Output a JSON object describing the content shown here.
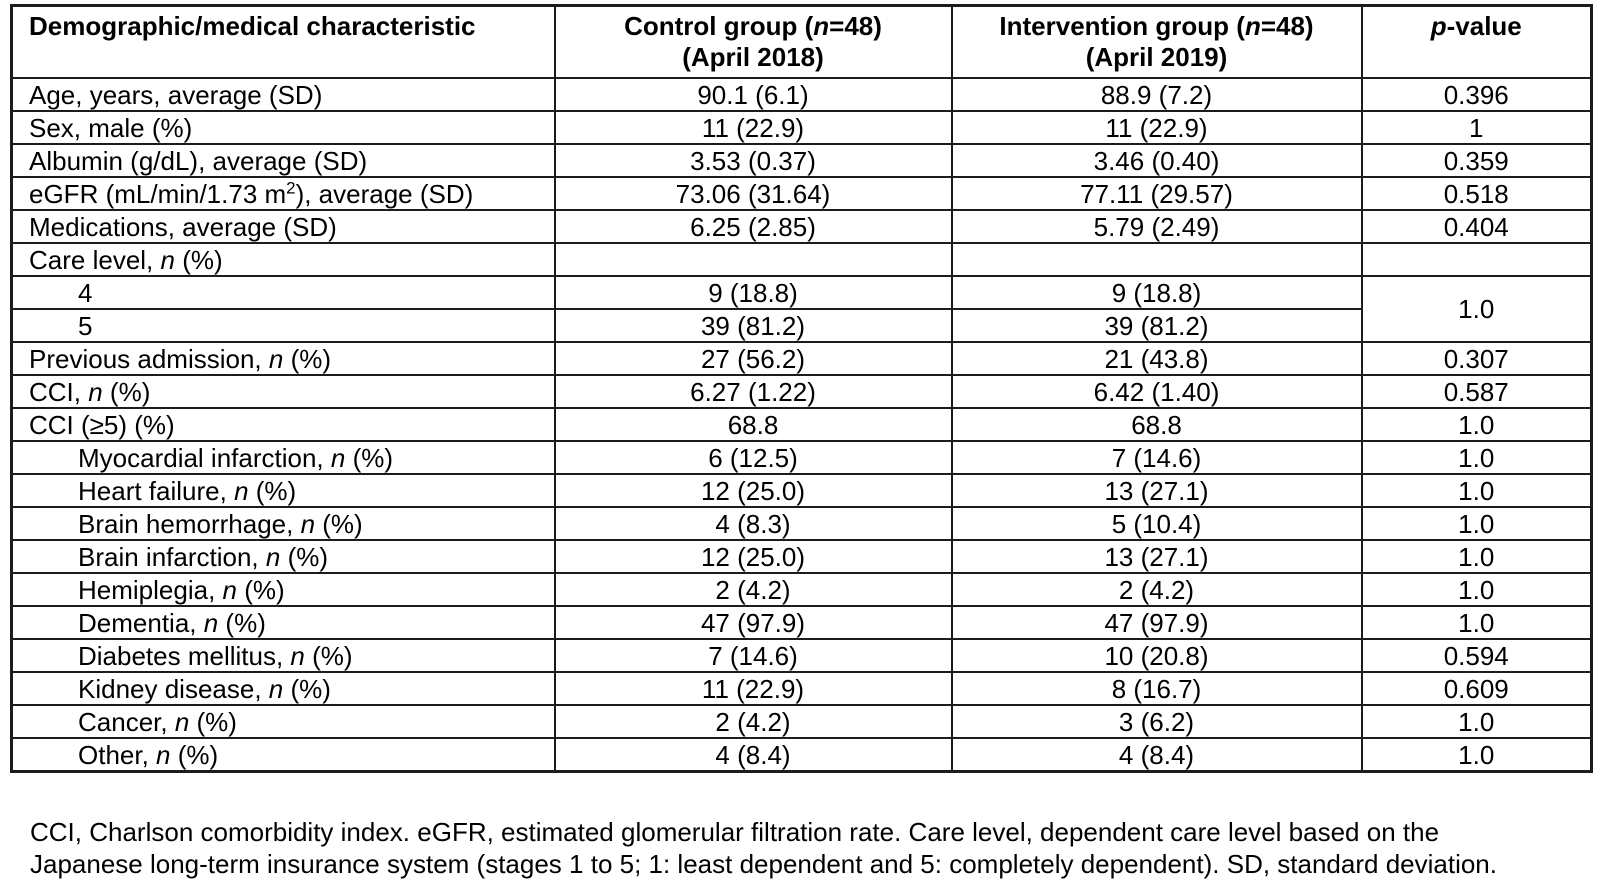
{
  "table": {
    "header": {
      "characteristic": "Demographic/medical characteristic",
      "control_line1": "Control group (*n*=48)",
      "control_line2": "(April 2018)",
      "intervention_line1": "Intervention group (*n*=48)",
      "intervention_line2": "(April 2019)",
      "pvalue": "*p*-value"
    },
    "rows": [
      {
        "label": "Age, years, average (SD)",
        "indent": 0,
        "control": "90.1 (6.1)",
        "intervention": "88.9 (7.2)",
        "p": "0.396"
      },
      {
        "label": "Sex, male (%)",
        "indent": 0,
        "control": "11 (22.9)",
        "intervention": "11 (22.9)",
        "p": "1"
      },
      {
        "label": "Albumin (g/dL), average (SD)",
        "indent": 0,
        "control": "3.53 (0.37)",
        "intervention": "3.46 (0.40)",
        "p": "0.359"
      },
      {
        "label": "eGFR (mL/min/1.73 m^2^), average (SD)",
        "indent": 0,
        "control": "73.06 (31.64)",
        "intervention": "77.11 (29.57)",
        "p": "0.518"
      },
      {
        "label": "Medications, average (SD)",
        "indent": 0,
        "control": "6.25 (2.85)",
        "intervention": "5.79 (2.49)",
        "p": "0.404"
      },
      {
        "label": "Care level, *n* (%)",
        "indent": 0,
        "control": "",
        "intervention": "",
        "p": ""
      },
      {
        "label": "4",
        "indent": 1,
        "control": "9 (18.8)",
        "intervention": "9 (18.8)",
        "p": "1.0",
        "p_rowspan": 2
      },
      {
        "label": "5",
        "indent": 1,
        "control": "39 (81.2)",
        "intervention": "39 (81.2)",
        "p_skip": true
      },
      {
        "label": "Previous admission, *n* (%)",
        "indent": 0,
        "control": "27 (56.2)",
        "intervention": "21 (43.8)",
        "p": "0.307"
      },
      {
        "label": "CCI, *n* (%)",
        "indent": 0,
        "control": "6.27 (1.22)",
        "intervention": "6.42 (1.40)",
        "p": "0.587"
      },
      {
        "label": "CCI (≥5) (%)",
        "indent": 0,
        "control": "68.8",
        "intervention": "68.8",
        "p": "1.0"
      },
      {
        "label": "Myocardial infarction, *n* (%)",
        "indent": 1,
        "control": "6 (12.5)",
        "intervention": "7 (14.6)",
        "p": "1.0"
      },
      {
        "label": "Heart failure, *n* (%)",
        "indent": 1,
        "control": "12 (25.0)",
        "intervention": "13 (27.1)",
        "p": "1.0"
      },
      {
        "label": "Brain hemorrhage, *n* (%)",
        "indent": 1,
        "control": "4 (8.3)",
        "intervention": "5 (10.4)",
        "p": "1.0"
      },
      {
        "label": "Brain infarction, *n* (%)",
        "indent": 1,
        "control": "12 (25.0)",
        "intervention": "13 (27.1)",
        "p": "1.0"
      },
      {
        "label": "Hemiplegia, *n* (%)",
        "indent": 1,
        "control": "2 (4.2)",
        "intervention": "2 (4.2)",
        "p": "1.0"
      },
      {
        "label": "Dementia, *n* (%)",
        "indent": 1,
        "control": "47 (97.9)",
        "intervention": "47 (97.9)",
        "p": "1.0"
      },
      {
        "label": "Diabetes mellitus, *n* (%)",
        "indent": 1,
        "control": "7 (14.6)",
        "intervention": "10 (20.8)",
        "p": "0.594"
      },
      {
        "label": "Kidney disease, *n* (%)",
        "indent": 1,
        "control": "11 (22.9)",
        "intervention": "8 (16.7)",
        "p": "0.609"
      },
      {
        "label": "Cancer, *n* (%)",
        "indent": 1,
        "control": "2 (4.2)",
        "intervention": "3 (6.2)",
        "p": "1.0"
      },
      {
        "label": "Other, *n* (%)",
        "indent": 1,
        "control": "4 (8.4)",
        "intervention": "4 (8.4)",
        "p": "1.0"
      }
    ],
    "footnote_line1": "CCI, Charlson comorbidity index. eGFR, estimated glomerular filtration rate. Care level, dependent care level based on the",
    "footnote_line2": "Japanese long-term insurance system (stages 1 to 5; 1: least dependent and 5: completely dependent). SD, standard deviation."
  }
}
